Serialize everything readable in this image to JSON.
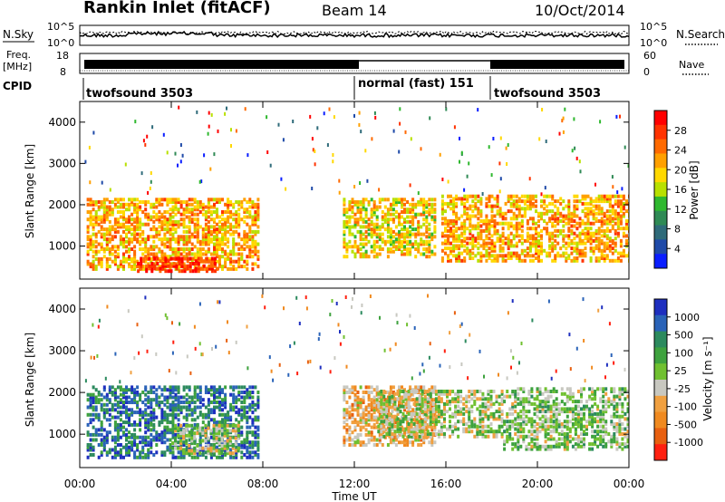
{
  "header": {
    "title": "Rankin Inlet (fitACF)",
    "beam": "Beam 14",
    "date": "10/Oct/2014"
  },
  "status_panels": {
    "nsky_label": "N.Sky",
    "nsky_scale": [
      "10^5",
      "10^0"
    ],
    "nsearch_label": "N.Search",
    "nsearch_scale": [
      "10^5",
      "10^0"
    ],
    "freq_label_top": "Freq.",
    "freq_label_unit": "[MHz]",
    "freq_scale": [
      "18",
      "8"
    ],
    "nave_label": "Nave",
    "nave_scale": [
      "60",
      "0"
    ],
    "cpid_label": "CPID",
    "cpid_segments": [
      "twofsound 3503",
      "normal (fast) 151",
      "twofsound 3503"
    ]
  },
  "axes": {
    "y_label": "Slant Range [km]",
    "x_label": "Time UT",
    "y_ticks": [
      "1000",
      "2000",
      "3000",
      "4000"
    ],
    "x_ticks": [
      "00:00",
      "04:00",
      "08:00",
      "12:00",
      "16:00",
      "20:00",
      "00:00"
    ]
  },
  "colorbars": {
    "power_label": "Power [dB]",
    "power_ticks": [
      "28",
      "24",
      "20",
      "16",
      "12",
      "8",
      "4"
    ],
    "power_colors": [
      "#ff0000",
      "#ff3300",
      "#ff6a00",
      "#ffa000",
      "#ffd800",
      "#b8e000",
      "#2fb82f",
      "#2f8a55",
      "#2f6b7a",
      "#1f4aa8",
      "#0a1eff"
    ],
    "velocity_label": "Velocity [m s⁻¹]",
    "velocity_ticks": [
      "1000",
      "500",
      "100",
      "25",
      "-25",
      "-100",
      "-500",
      "-1000"
    ],
    "velocity_colors": [
      "#1e2fbf",
      "#2a63b8",
      "#2c8a5e",
      "#3ea23e",
      "#70c030",
      "#c8c8c0",
      "#f0a040",
      "#f08a20",
      "#e86010",
      "#ff2010"
    ]
  },
  "chart_data": [
    {
      "type": "heatmap",
      "title": "Rankin Inlet (fitACF) Beam 14 10/Oct/2014",
      "xlabel": "Time UT",
      "ylabel": "Slant Range [km]",
      "xlim": [
        0,
        24
      ],
      "ylim": [
        200,
        4500
      ],
      "colorbar": "Power [dB]",
      "clim": [
        0,
        30
      ],
      "echo_regions": [
        {
          "t_start": 0.3,
          "t_end": 7.8,
          "r_low": 400,
          "r_high": 2100,
          "value": 20
        },
        {
          "t_start": 2.5,
          "t_end": 6.0,
          "r_low": 350,
          "r_high": 700,
          "value": 27
        },
        {
          "t_start": 11.5,
          "t_end": 15.5,
          "r_low": 700,
          "r_high": 2100,
          "value": 18
        },
        {
          "t_start": 15.8,
          "t_end": 24,
          "r_low": 600,
          "r_high": 2200,
          "value": 20
        }
      ]
    },
    {
      "type": "heatmap",
      "xlabel": "Time UT",
      "ylabel": "Slant Range [km]",
      "xlim": [
        0,
        24
      ],
      "ylim": [
        200,
        4500
      ],
      "colorbar": "Velocity [m s⁻¹]",
      "clim": [
        -1000,
        1000
      ],
      "echo_regions": [
        {
          "t_start": 0.3,
          "t_end": 7.8,
          "r_low": 400,
          "r_high": 2100,
          "value": 600
        },
        {
          "t_start": 4.0,
          "t_end": 7.0,
          "r_low": 500,
          "r_high": 1200,
          "value": 0
        },
        {
          "t_start": 11.5,
          "t_end": 15.5,
          "r_low": 700,
          "r_high": 2100,
          "value": -300
        },
        {
          "t_start": 13.0,
          "t_end": 18.5,
          "r_low": 900,
          "r_high": 2000,
          "value": 0
        },
        {
          "t_start": 18.5,
          "t_end": 24,
          "r_low": 600,
          "r_high": 2100,
          "value": 100
        }
      ]
    }
  ]
}
